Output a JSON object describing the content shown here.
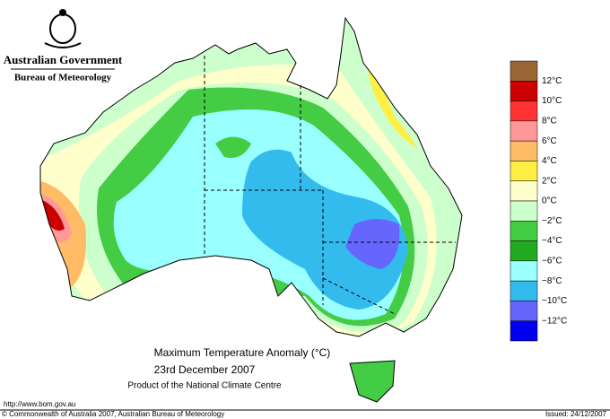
{
  "header": {
    "government": "Australian Government",
    "bureau": "Bureau of Meteorology"
  },
  "map": {
    "title": "Maximum Temperature Anomaly (°C)",
    "date": "23rd December 2007",
    "product": "Product of the National Climate Centre"
  },
  "legend": {
    "colors": [
      "#996633",
      "#cc0000",
      "#ff3333",
      "#ff9999",
      "#ffbb66",
      "#ffee44",
      "#ffffcc",
      "#ccffcc",
      "#44cc44",
      "#22aa22",
      "#99ffff",
      "#33bbee",
      "#6666ff",
      "#0000ee"
    ],
    "labels": [
      "12°C",
      "10°C",
      "8°C",
      "6°C",
      "4°C",
      "2°C",
      "0°C",
      "−2°C",
      "−4°C",
      "−6°C",
      "−8°C",
      "−10°C",
      "−12°C"
    ]
  },
  "footer": {
    "url": "http://www.bom.gov.au",
    "copyright": "© Commonwealth of Australia 2007, Australian Bureau of Meteorology",
    "issued": "Issued: 24/12/2007"
  }
}
